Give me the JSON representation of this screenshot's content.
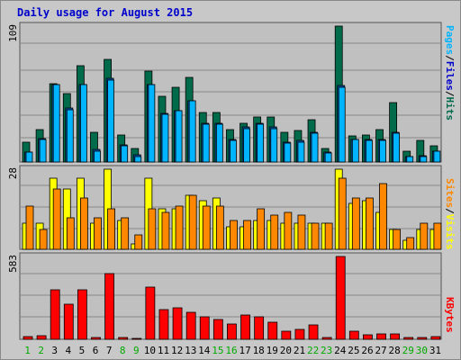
{
  "title": "Daily usage for August 2015",
  "colors": {
    "hits": "#006b4a",
    "files": "#00a8ff",
    "pages": "#00b4ff",
    "visits": "#ffff00",
    "sites": "#ff8800",
    "kbytes": "#ff0000",
    "plot_bg": "#c0c0c0",
    "grid": "#888888",
    "weekday": "#000000",
    "weekend": "#00aa00"
  },
  "legend_right": {
    "top": [
      {
        "text": "Pages",
        "color": "#00b4ff"
      },
      {
        "text": "/",
        "color": "#000000"
      },
      {
        "text": "Files",
        "color": "#0000cc"
      },
      {
        "text": "/",
        "color": "#000000"
      },
      {
        "text": "Hits",
        "color": "#006b4a"
      }
    ],
    "middle": [
      {
        "text": "Sites",
        "color": "#ff8800"
      },
      {
        "text": "/",
        "color": "#000000"
      },
      {
        "text": "Visits",
        "color": "#ffff00"
      }
    ],
    "bottom": [
      {
        "text": "KBytes",
        "color": "#ff0000"
      }
    ]
  },
  "chart_data": [
    {
      "type": "bar",
      "name": "hits-files-pages",
      "ymax_label": "109",
      "ylim": [
        0,
        109
      ],
      "categories": [
        "1",
        "2",
        "3",
        "4",
        "5",
        "6",
        "7",
        "8",
        "9",
        "10",
        "11",
        "12",
        "13",
        "14",
        "15",
        "16",
        "17",
        "18",
        "19",
        "20",
        "21",
        "22",
        "23",
        "24",
        "25",
        "26",
        "27",
        "28",
        "29",
        "30",
        "31"
      ],
      "weekend": [
        1,
        2,
        8,
        9,
        15,
        16,
        22,
        23,
        29,
        30
      ],
      "series": [
        {
          "name": "Hits",
          "values": [
            16,
            26,
            63,
            55,
            77,
            24,
            82,
            22,
            11,
            73,
            53,
            60,
            68,
            40,
            40,
            26,
            31,
            36,
            36,
            24,
            25,
            34,
            11,
            109,
            21,
            22,
            26,
            48,
            9,
            17,
            13
          ]
        },
        {
          "name": "Files",
          "values": [
            8,
            19,
            62,
            43,
            62,
            10,
            67,
            14,
            6,
            62,
            39,
            41,
            49,
            31,
            31,
            18,
            28,
            31,
            28,
            16,
            17,
            24,
            8,
            61,
            18,
            18,
            18,
            24,
            4,
            5,
            9
          ]
        },
        {
          "name": "Pages",
          "values": [
            8,
            18,
            62,
            42,
            62,
            9,
            66,
            13,
            4,
            62,
            38,
            41,
            49,
            30,
            30,
            17,
            27,
            30,
            27,
            15,
            16,
            23,
            7,
            60,
            18,
            17,
            17,
            23,
            4,
            4,
            9
          ]
        }
      ]
    },
    {
      "type": "bar",
      "name": "visits-sites",
      "ymax_label": "28",
      "ylim": [
        0,
        28
      ],
      "categories": [
        "1",
        "2",
        "3",
        "4",
        "5",
        "6",
        "7",
        "8",
        "9",
        "10",
        "11",
        "12",
        "13",
        "14",
        "15",
        "16",
        "17",
        "18",
        "19",
        "20",
        "21",
        "22",
        "23",
        "24",
        "25",
        "26",
        "27",
        "28",
        "29",
        "30",
        "31"
      ],
      "series": [
        {
          "name": "Visits",
          "values": [
            9,
            9,
            25,
            21,
            25,
            9,
            28,
            10,
            2,
            25,
            14,
            14,
            19,
            17,
            18,
            8,
            8,
            10,
            10,
            9,
            9,
            9,
            9,
            28,
            16,
            17,
            13,
            7,
            3,
            7,
            7
          ]
        },
        {
          "name": "Sites",
          "values": [
            15,
            7,
            21,
            11,
            18,
            11,
            14,
            11,
            5,
            14,
            13,
            15,
            19,
            15,
            15,
            10,
            10,
            14,
            12,
            13,
            12,
            9,
            9,
            25,
            18,
            18,
            23,
            7,
            4,
            9,
            9
          ]
        }
      ]
    },
    {
      "type": "bar",
      "name": "kbytes",
      "ymax_label": "583",
      "ylim": [
        0,
        583
      ],
      "categories": [
        "1",
        "2",
        "3",
        "4",
        "5",
        "6",
        "7",
        "8",
        "9",
        "10",
        "11",
        "12",
        "13",
        "14",
        "15",
        "16",
        "17",
        "18",
        "19",
        "20",
        "21",
        "22",
        "23",
        "24",
        "25",
        "26",
        "27",
        "28",
        "29",
        "30",
        "31"
      ],
      "series": [
        {
          "name": "KBytes",
          "values": [
            20,
            25,
            350,
            250,
            350,
            15,
            460,
            15,
            5,
            370,
            210,
            220,
            190,
            160,
            140,
            110,
            170,
            160,
            120,
            60,
            70,
            100,
            15,
            583,
            60,
            30,
            35,
            40,
            10,
            15,
            20
          ]
        }
      ]
    }
  ]
}
